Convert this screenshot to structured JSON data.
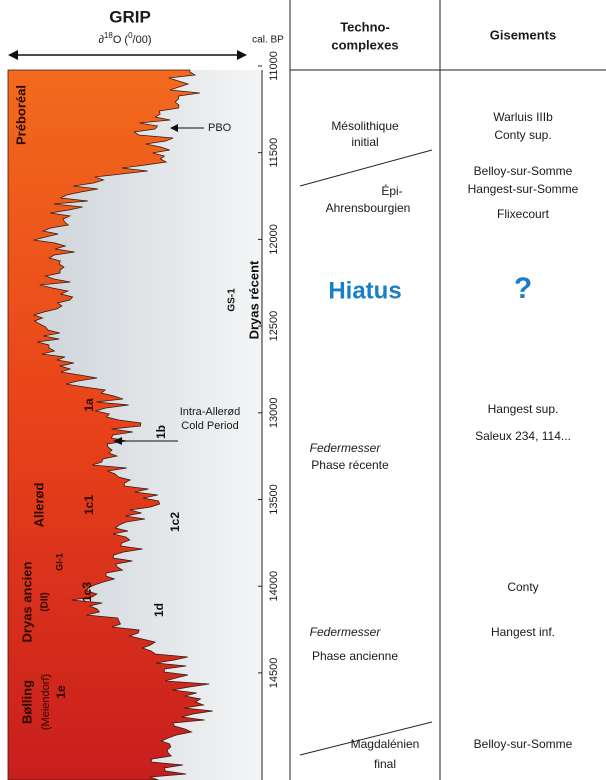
{
  "header": {
    "title": "GRIP",
    "axis_label": [
      "∂",
      "18",
      "O (",
      "0",
      "/00)"
    ],
    "age_label": "cal. BP",
    "techno_header": [
      "Techno-",
      "complexes"
    ],
    "sites_header": "Gisements"
  },
  "age_ticks": [
    11000,
    11500,
    12000,
    12500,
    13000,
    13500,
    14000,
    14500
  ],
  "curve_labels": {
    "preboreal": "Préboréal",
    "dryas_recent": "Dryas récent",
    "gs1": "GS-1",
    "l1a": "1a",
    "l1b": "1b",
    "l1c1": "1c1",
    "l1c2": "1c2",
    "l1c3": "1c3",
    "gi1": "GI-1",
    "allerod": "Allerød",
    "dryas_ancien": "Dryas ancien",
    "dii": "(DII)",
    "l1d": "1d",
    "l1e": "1e",
    "bolling": "Bølling",
    "meiendorf": "(Meiendorf)",
    "pbo": "PBO",
    "iacp": [
      "Intra-Allerød",
      "Cold Period"
    ]
  },
  "technocomplexes": {
    "mesolithique": [
      "Mésolithique",
      "initial"
    ],
    "epi": [
      "Épi-",
      "Ahrensbourgien"
    ],
    "hiatus": "Hiatus",
    "federmesser_recent": [
      "Federmesser",
      "Phase récente"
    ],
    "federmesser_ancien": [
      "Federmesser",
      "Phase ancienne"
    ],
    "magdalenien": [
      "Magdalénien",
      "final"
    ]
  },
  "sites": [
    "Warluis IIIb",
    "Conty sup.",
    "Belloy-sur-Somme",
    "Hangest-sur-Somme",
    "Flixecourt",
    "?",
    "Hangest sup.",
    "Saleux 234, 114...",
    "Conty",
    "Hangest inf.",
    "Belloy-sur-Somme"
  ]
}
